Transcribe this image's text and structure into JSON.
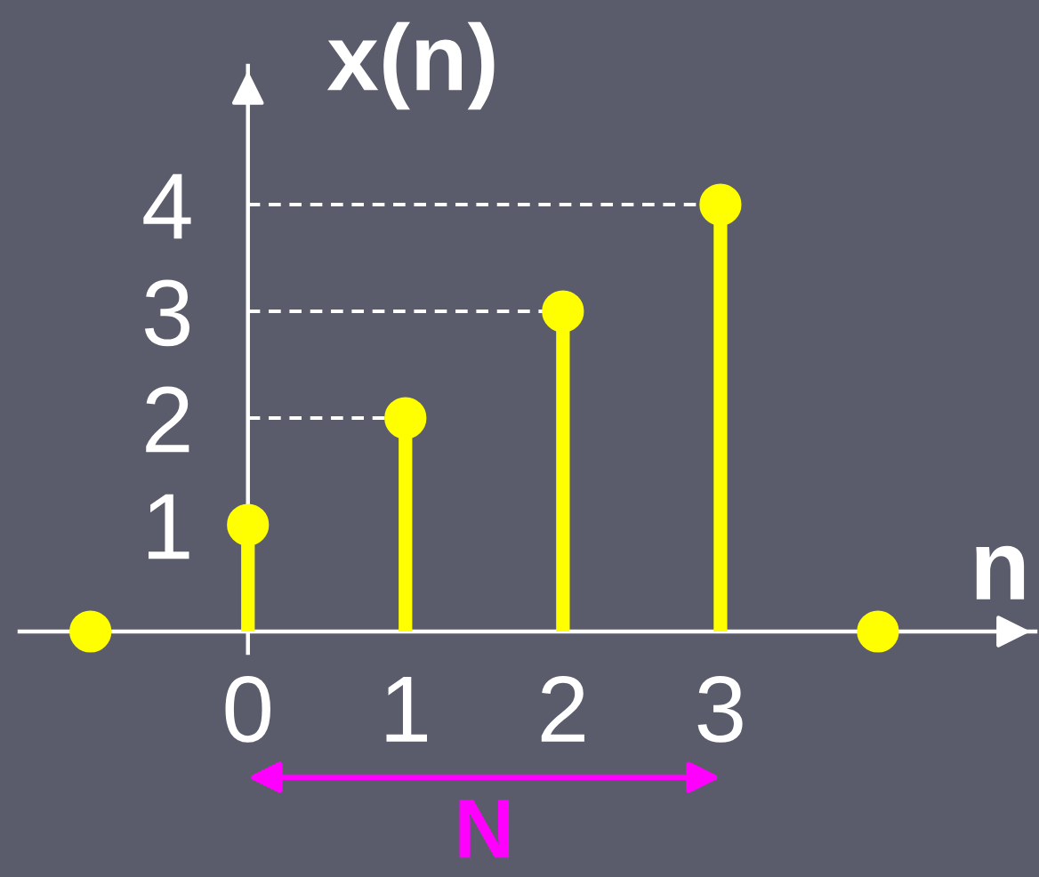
{
  "chart_data": {
    "type": "lollipop",
    "xlabel": "n",
    "ylabel": "x(n)",
    "x": [
      -1,
      0,
      1,
      2,
      3,
      4
    ],
    "series": [
      {
        "color": "#ffff00",
        "values": [
          0,
          1,
          2,
          3,
          4,
          0
        ]
      }
    ],
    "marker": "circle",
    "xlim": [
      -1.45,
      5.0
    ],
    "ylim": [
      -0.2,
      5.3
    ],
    "xticks": [
      0,
      1,
      2,
      3
    ],
    "yticks": [
      1,
      2,
      3,
      4
    ],
    "ref_lines": [
      {
        "axis": "y",
        "value": 2,
        "line_style": "dashed",
        "color": "#ffffff"
      },
      {
        "axis": "y",
        "value": 3,
        "line_style": "dashed",
        "color": "#ffffff"
      },
      {
        "axis": "y",
        "value": 4,
        "line_style": "dashed",
        "color": "#ffffff"
      }
    ],
    "annotations": [
      "N"
    ]
  }
}
